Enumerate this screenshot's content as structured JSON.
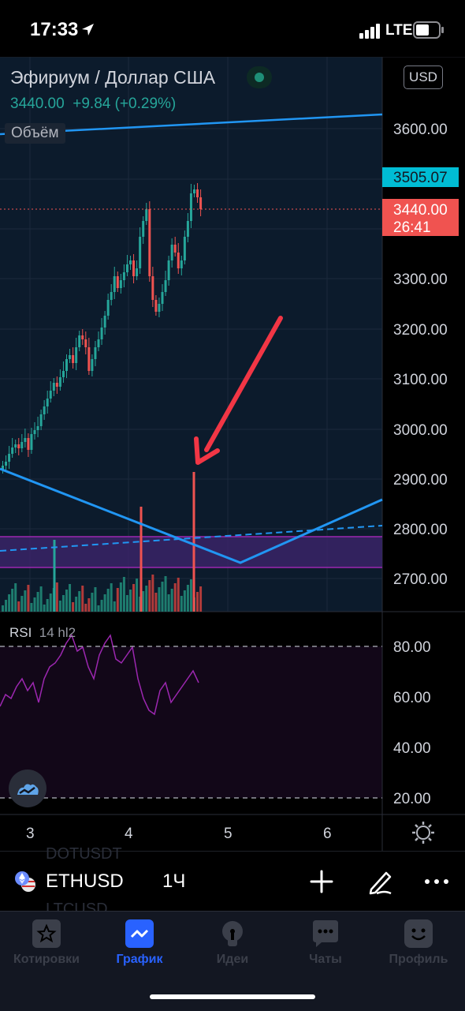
{
  "status_bar": {
    "time": "17:33",
    "network": "LTE"
  },
  "chart": {
    "symbol_title": "Эфириум / Доллар США",
    "last_price": "3440.00",
    "change": "+9.84 (+0.29%)",
    "volume_label": "Объём",
    "currency_badge": "USD",
    "price_tag_cyan": "3505.07",
    "price_tag_red": "3440.00",
    "countdown": "26:41",
    "y_axis_labels": [
      "3600.00",
      "3300.00",
      "3200.00",
      "3100.00",
      "3000.00",
      "2900.00",
      "2800.00",
      "2700.00"
    ],
    "x_axis_labels": [
      "3",
      "4",
      "5",
      "6"
    ],
    "colors": {
      "up": "#26a69a",
      "down": "#ef5350",
      "cyan_tag": "#00bcd4",
      "trendline": "#2196f3",
      "rsi": "#9c27b0",
      "arrow": "#f23645"
    }
  },
  "rsi": {
    "name": "RSI",
    "params": "14 hl2",
    "levels": [
      "80.00",
      "60.00",
      "40.00",
      "20.00"
    ]
  },
  "toolbar": {
    "symbol": "ETHUSD",
    "interval": "1Ч",
    "ghost_text_top": "DOTUSDT",
    "ghost_text_bottom": "LTCUSD",
    "icons": [
      "plus-icon",
      "pencil-icon",
      "more-icon"
    ]
  },
  "tabs": [
    {
      "label": "Котировки",
      "icon": "star-icon",
      "active": false
    },
    {
      "label": "График",
      "icon": "chart-icon",
      "active": true
    },
    {
      "label": "Идеи",
      "icon": "bulb-icon",
      "active": false
    },
    {
      "label": "Чаты",
      "icon": "chat-icon",
      "active": false
    },
    {
      "label": "Профиль",
      "icon": "smile-icon",
      "active": false
    }
  ]
}
